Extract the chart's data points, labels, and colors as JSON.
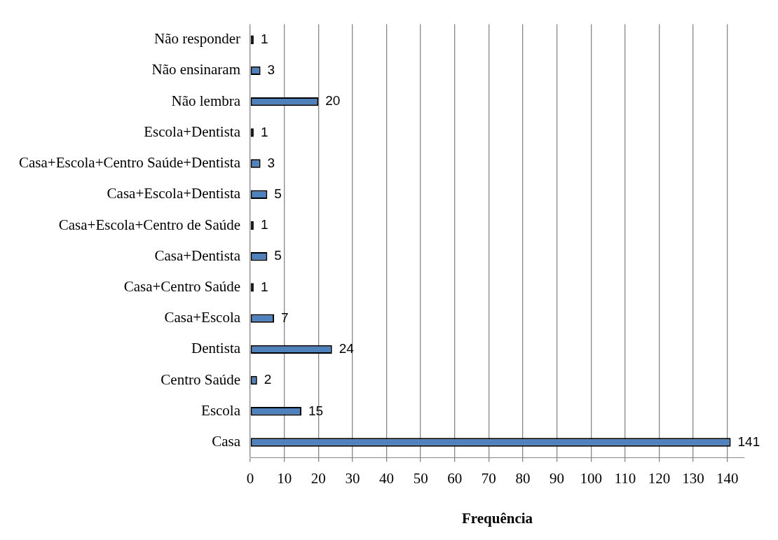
{
  "chart_data": {
    "type": "bar",
    "orientation": "horizontal",
    "xlabel": "Frequência",
    "categories": [
      "Não responder",
      "Não ensinaram",
      "Não lembra",
      "Escola+Dentista",
      "Casa+Escola+Centro Saúde+Dentista",
      "Casa+Escola+Dentista",
      "Casa+Escola+Centro de Saúde",
      "Casa+Dentista",
      "Casa+Centro Saúde",
      "Casa+Escola",
      "Dentista",
      "Centro Saúde",
      "Escola",
      "Casa"
    ],
    "values": [
      1,
      3,
      20,
      1,
      3,
      5,
      1,
      5,
      1,
      7,
      24,
      2,
      15,
      141
    ],
    "color": "#4f81bd",
    "xlim": [
      0,
      145
    ],
    "xticks": [
      0,
      10,
      20,
      30,
      40,
      50,
      60,
      70,
      80,
      90,
      100,
      110,
      120,
      130,
      140
    ],
    "grid": "x",
    "data_labels": true,
    "legend": false
  }
}
